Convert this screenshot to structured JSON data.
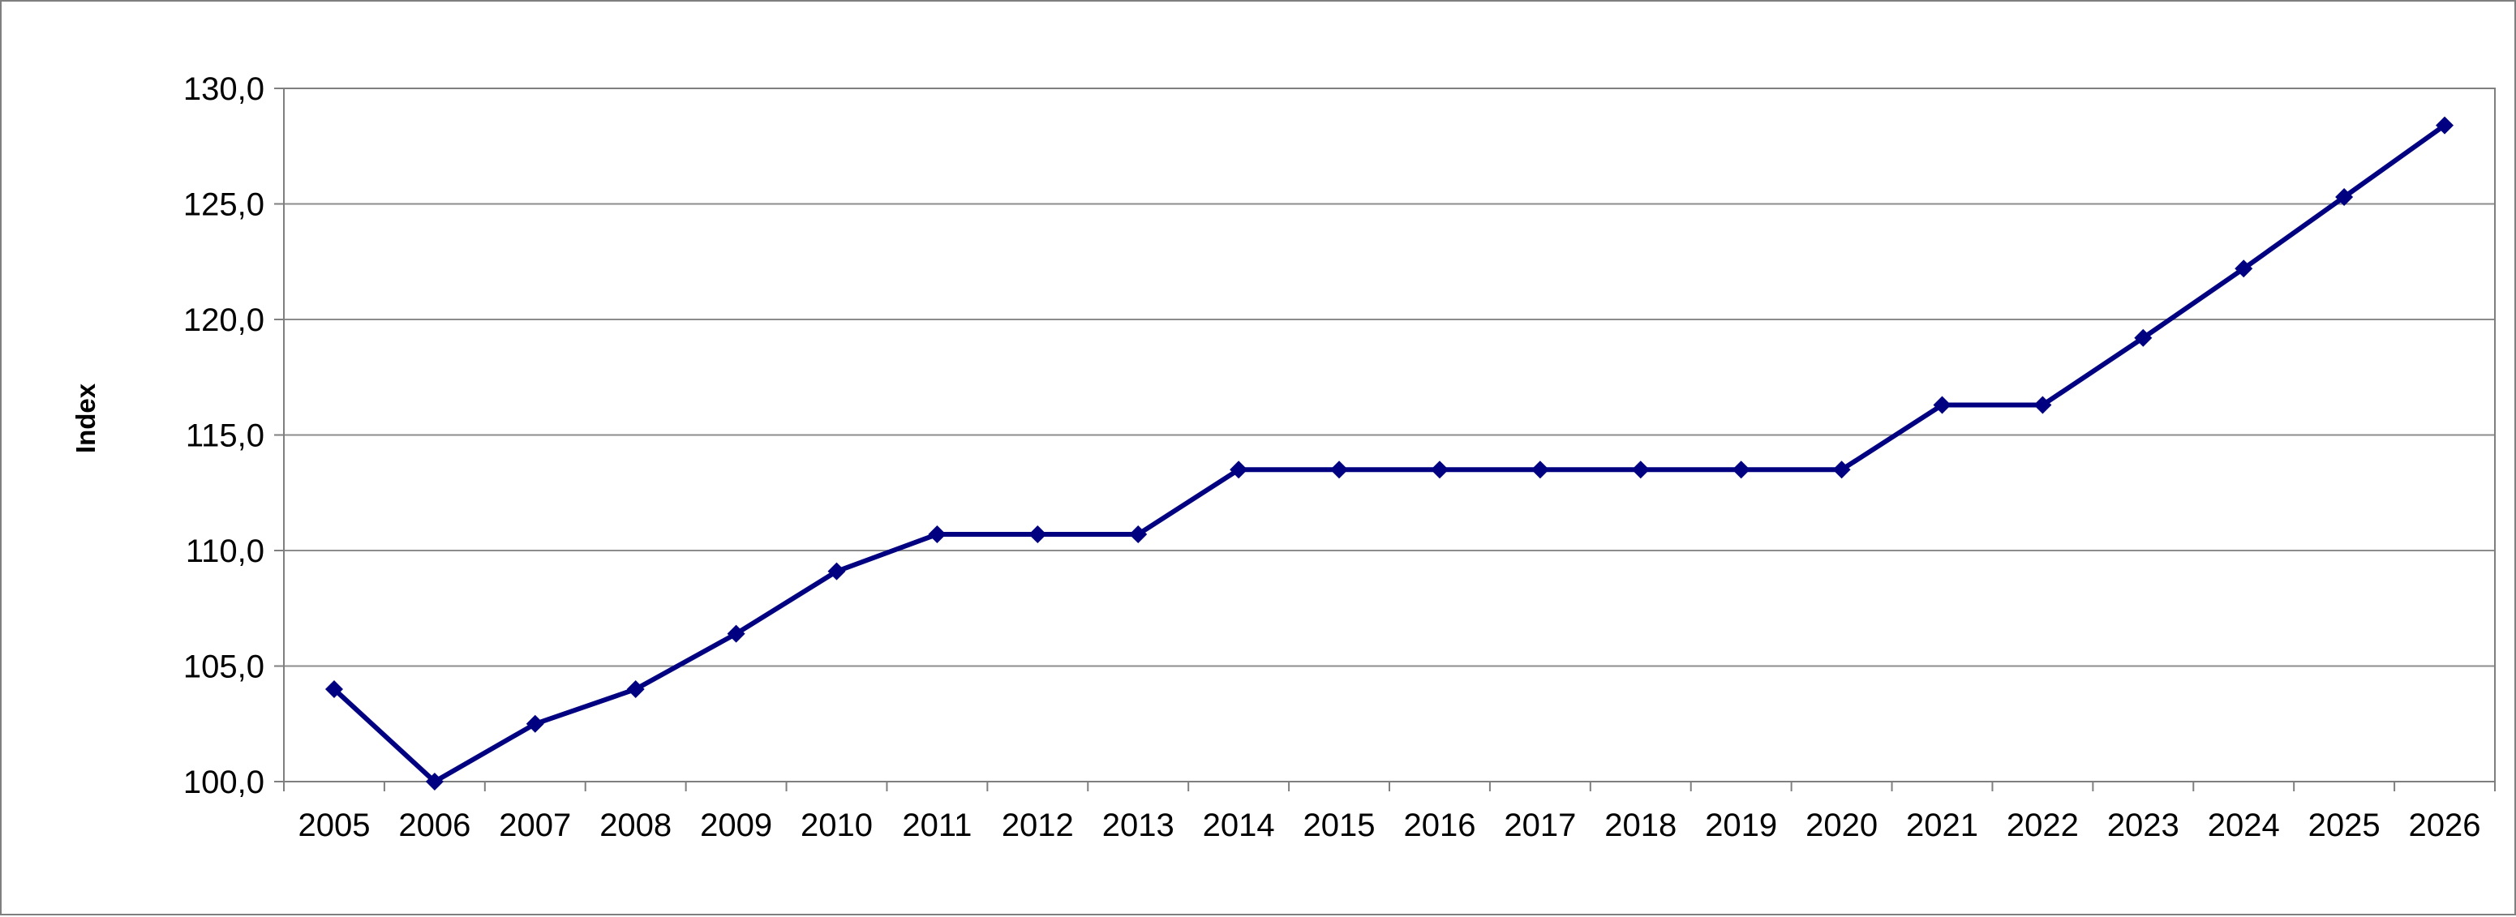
{
  "chart_data": {
    "type": "line",
    "title": "",
    "xlabel": "",
    "ylabel": "Index",
    "categories": [
      "2005",
      "2006",
      "2007",
      "2008",
      "2009",
      "2010",
      "2011",
      "2012",
      "2013",
      "2014",
      "2015",
      "2016",
      "2017",
      "2018",
      "2019",
      "2020",
      "2021",
      "2022",
      "2023",
      "2024",
      "2025",
      "2026"
    ],
    "series": [
      {
        "values": [
          104.0,
          100.0,
          102.5,
          104.0,
          106.4,
          109.1,
          110.7,
          110.7,
          110.7,
          113.5,
          113.5,
          113.5,
          113.5,
          113.5,
          113.5,
          113.5,
          116.3,
          116.3,
          119.2,
          122.2,
          125.3,
          128.4
        ],
        "color": "#000080",
        "marker": "diamond"
      }
    ],
    "ylim": [
      100,
      130
    ],
    "yticks": [
      100,
      105,
      110,
      115,
      120,
      125,
      130
    ],
    "ytick_labels": [
      "100,0",
      "105,0",
      "110,0",
      "115,0",
      "120,0",
      "125,0",
      "130,0"
    ],
    "grid": true,
    "legend": "none"
  }
}
